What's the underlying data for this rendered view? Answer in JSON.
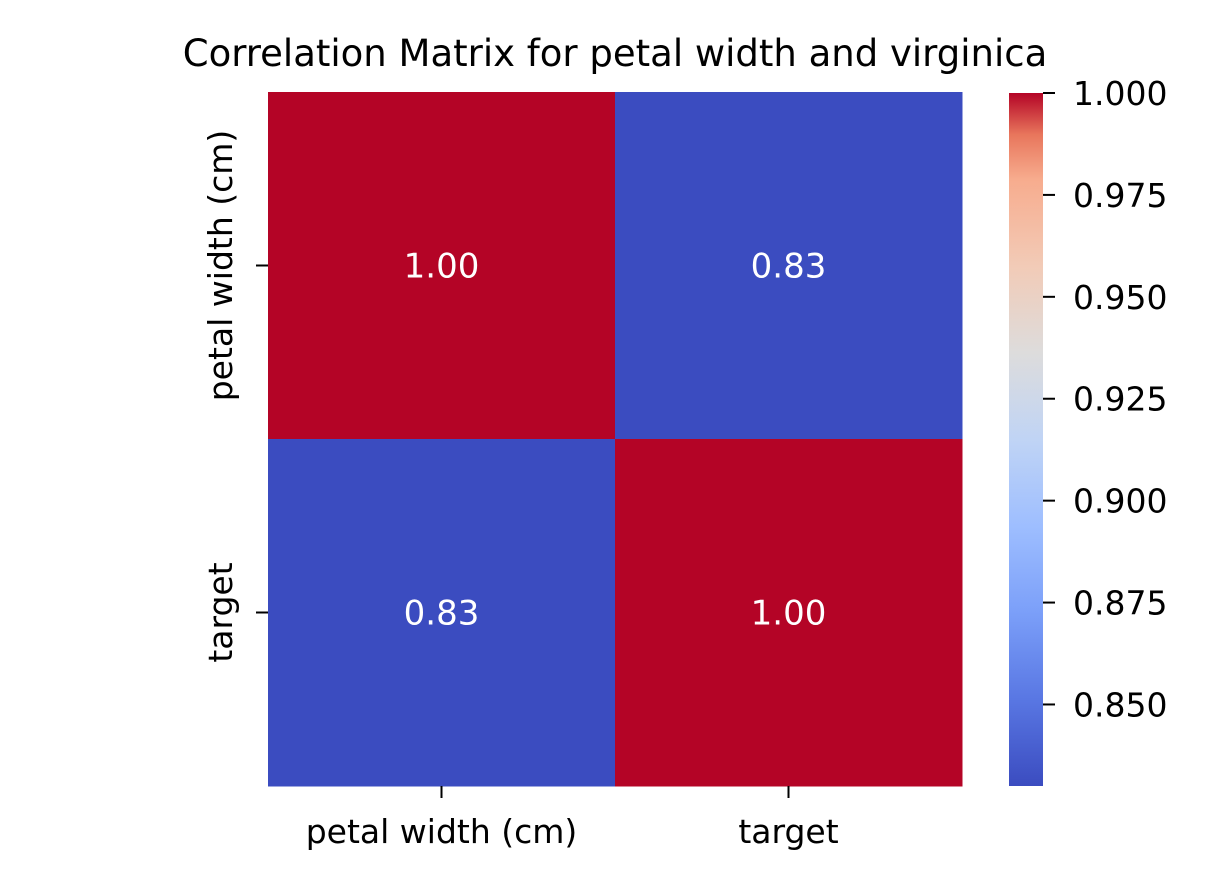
{
  "chart_data": {
    "type": "heatmap",
    "title": "Correlation Matrix for petal width and virginica",
    "xlabel": "",
    "ylabel": "",
    "x_categories": [
      "petal width (cm)",
      "target"
    ],
    "y_categories": [
      "petal width (cm)",
      "target"
    ],
    "values": [
      [
        1.0,
        0.83
      ],
      [
        0.83,
        1.0
      ]
    ],
    "cell_labels": [
      [
        "1.00",
        "0.83"
      ],
      [
        "0.83",
        "1.00"
      ]
    ],
    "colormap": "coolwarm",
    "colorbar": {
      "range": [
        0.83,
        1.0
      ],
      "ticks": [
        0.85,
        0.875,
        0.9,
        0.925,
        0.95,
        0.975,
        1.0
      ],
      "tick_labels": [
        "0.850",
        "0.875",
        "0.900",
        "0.925",
        "0.950",
        "0.975",
        "1.000"
      ]
    },
    "colors": {
      "high": "#b40426",
      "low": "#3b4cc0",
      "annotation_text": "#ffffff"
    },
    "grid": false,
    "legend": "colorbar-right"
  }
}
